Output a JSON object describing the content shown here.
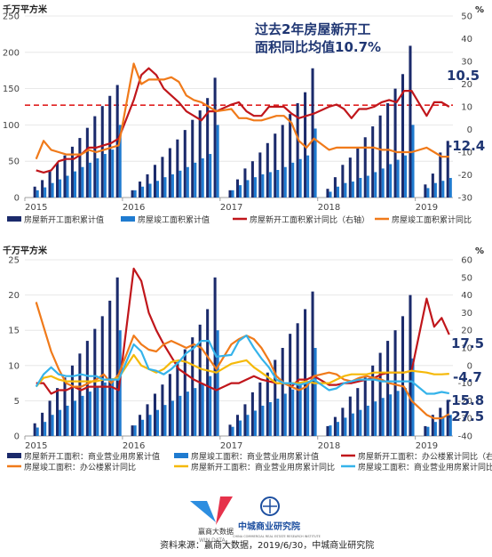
{
  "colors": {
    "navy": "#1b2a6b",
    "blue": "#1f7bd0",
    "red": "#c0161b",
    "orange": "#f07a1a",
    "yellow": "#f5b90a",
    "cyan": "#35b3ea",
    "dash": "#e02020",
    "annot": "#1f3673"
  },
  "chart1": {
    "unit_left": "千万平方米",
    "unit_right": "%",
    "annotation_line1": "过去2年房屋新开工",
    "annotation_line2": "面积同比均值10.7%",
    "end_labels": [
      "10.5",
      "-12.4"
    ],
    "legend": [
      "房屋新开工面积累计值",
      "房屋竣工面积累计值",
      "房屋新开工面积累计同比（右轴）",
      "房屋竣工面积累计同比"
    ],
    "years": [
      "2015",
      "2016",
      "2017",
      "2018",
      "2019"
    ]
  },
  "chart2": {
    "unit_left": "千万平方米",
    "unit_right": "%",
    "end_labels": [
      "17.5",
      "-4.7",
      "-15.8",
      "-27.5"
    ],
    "legend": [
      "房屋新开工面积：商业营业用房累计值",
      "房屋竣工面积：商业营业用房累计值",
      "房屋新开工面积：办公楼累计同比（右轴）",
      "房屋竣工面积：办公楼累计同比",
      "房屋新开工面积：商业营业用房累计同比",
      "房屋竣工面积：商业营业用房累计同比"
    ],
    "years": [
      "2015",
      "2016",
      "2017",
      "2018",
      "2019"
    ]
  },
  "footer": {
    "logo1_cn": "赢商大数据",
    "logo1_en": "WIN DATA",
    "logo2_cn": "中城商业研究院",
    "logo2_en": "CHINA COMMERCIAL REAL ESTATE RESEARCH INSTITUTE",
    "source": "资料来源：赢商大数据，2019/6/30，中城商业研究院"
  },
  "chart_data": [
    {
      "type": "bar",
      "x_axis": {
        "ticks": [
          "2015",
          "2016",
          "2017",
          "2018",
          "2019"
        ]
      },
      "y_left": {
        "range": [
          0,
          250
        ],
        "ticks": [
          0,
          50,
          100,
          150,
          200,
          250
        ]
      },
      "y_right": {
        "range": [
          -30,
          50
        ],
        "ticks": [
          -30,
          -20,
          -10,
          0,
          10,
          20,
          30,
          40,
          50
        ]
      },
      "reference_line": {
        "axis": "right",
        "value": 10.7
      },
      "series": [
        {
          "name": "房屋新开工面积累计值",
          "axis": "left",
          "kind": "bar",
          "values": [
            null,
            15,
            24,
            36,
            48,
            58,
            70,
            82,
            96,
            112,
            126,
            140,
            155,
            null,
            10,
            22,
            32,
            45,
            56,
            68,
            80,
            93,
            107,
            120,
            137,
            165,
            null,
            10,
            25,
            40,
            50,
            62,
            75,
            88,
            100,
            115,
            130,
            145,
            178,
            null,
            12,
            28,
            45,
            55,
            68,
            83,
            98,
            113,
            130,
            150,
            170,
            209,
            null,
            18,
            33,
            62,
            78
          ]
        },
        {
          "name": "房屋竣工面积累计值",
          "axis": "left",
          "kind": "bar",
          "values": [
            null,
            10,
            14,
            20,
            25,
            30,
            36,
            42,
            48,
            54,
            60,
            66,
            100,
            null,
            10,
            15,
            19,
            23,
            28,
            32,
            37,
            42,
            48,
            54,
            60,
            100,
            null,
            10,
            17,
            24,
            28,
            32,
            35,
            38,
            42,
            48,
            53,
            58,
            95,
            null,
            8,
            15,
            20,
            22,
            27,
            30,
            35,
            40,
            46,
            52,
            58,
            100,
            null,
            13,
            20,
            23,
            27
          ]
        },
        {
          "name": "房屋新开工面积累计同比（右轴）",
          "axis": "right",
          "kind": "line",
          "values": [
            null,
            -18,
            -19,
            -18,
            -14,
            -13,
            -13,
            -11,
            -8,
            -8,
            -7,
            -6,
            -4,
            null,
            13,
            24,
            27,
            24,
            18,
            15,
            12,
            8,
            6,
            4,
            8,
            8,
            null,
            11,
            12,
            8,
            6,
            6,
            10,
            10,
            10,
            7,
            5,
            6,
            7,
            null,
            10,
            11,
            9,
            5,
            9,
            9,
            10,
            12,
            13,
            12,
            17,
            17,
            null,
            6,
            12,
            12,
            10
          ]
        },
        {
          "name": "房屋竣工面积累计同比",
          "axis": "right",
          "kind": "line",
          "values": [
            null,
            -13,
            -5,
            -9,
            -10,
            -11,
            -11,
            -11,
            -9,
            -10,
            -9,
            -8,
            -7,
            null,
            29,
            20,
            22,
            22,
            22,
            23,
            21,
            15,
            13,
            12,
            10,
            8,
            null,
            9,
            5,
            5,
            4,
            4,
            5,
            6,
            6,
            3,
            -5,
            -8,
            -4,
            null,
            -9,
            -8,
            -8,
            -8,
            -8,
            -8,
            -8,
            -9,
            -9,
            -10,
            -10,
            -10,
            null,
            -8,
            -10,
            -12,
            -12
          ]
        }
      ]
    },
    {
      "type": "bar",
      "x_axis": {
        "ticks": [
          "2015",
          "2016",
          "2017",
          "2018",
          "2019"
        ]
      },
      "y_left": {
        "range": [
          0,
          25
        ],
        "ticks": [
          0,
          5,
          10,
          15,
          20,
          25
        ]
      },
      "y_right": {
        "range": [
          -40,
          60
        ],
        "ticks": [
          -40,
          -30,
          -20,
          -10,
          0,
          10,
          20,
          30,
          40,
          50,
          60
        ]
      },
      "series": [
        {
          "name": "房屋新开工面积：商业营业用房累计值",
          "axis": "left",
          "kind": "bar",
          "values": [
            null,
            1.8,
            3.3,
            5.0,
            6.8,
            8.3,
            10.0,
            11.7,
            13.5,
            15.2,
            17.0,
            19.2,
            22.5,
            null,
            1.5,
            3.0,
            4.5,
            6.0,
            7.3,
            8.8,
            10.5,
            12.3,
            14.0,
            15.8,
            18.0,
            22.5,
            null,
            1.6,
            3.0,
            4.5,
            6.2,
            7.6,
            9.0,
            10.8,
            12.5,
            14.5,
            16.0,
            18.0,
            20.5,
            null,
            1.4,
            2.7,
            4.0,
            5.6,
            6.8,
            8.3,
            10.0,
            11.8,
            13.5,
            15.0,
            17.0,
            20.0,
            null,
            1.4,
            3.0,
            4.0,
            5.0
          ]
        },
        {
          "name": "房屋竣工面积：商业营业用房累计值",
          "axis": "left",
          "kind": "bar",
          "values": [
            null,
            1.2,
            2.0,
            3.0,
            3.7,
            4.3,
            5.0,
            5.7,
            6.3,
            7.0,
            7.6,
            8.2,
            15.0,
            null,
            1.5,
            2.3,
            3.0,
            3.7,
            4.4,
            5.0,
            5.7,
            6.3,
            6.8,
            7.5,
            8.5,
            15.0,
            null,
            1.3,
            2.2,
            3.0,
            3.6,
            4.3,
            4.8,
            5.3,
            6.0,
            6.6,
            7.2,
            7.8,
            12.5,
            null,
            1.5,
            2.0,
            2.6,
            3.2,
            3.7,
            4.3,
            4.9,
            5.4,
            5.9,
            6.4,
            6.8,
            11.0,
            null,
            1.3,
            2.0,
            2.8,
            3.0
          ]
        },
        {
          "name": "房屋新开工面积：办公楼累计同比（右轴）",
          "axis": "right",
          "kind": "line",
          "values": [
            null,
            -10,
            -10,
            -16,
            -14,
            -14,
            -12,
            -14,
            -12,
            -12,
            -12,
            -12,
            -14,
            null,
            55,
            48,
            30,
            20,
            12,
            5,
            -2,
            -5,
            -8,
            -10,
            -12,
            -14,
            null,
            -10,
            -10,
            -8,
            -6,
            -8,
            -9,
            -10,
            -10,
            -12,
            -8,
            -8,
            -6,
            null,
            -11,
            -11,
            -10,
            -10,
            -9,
            -8,
            -7,
            -5,
            -4,
            -4,
            -4,
            -3,
            null,
            38,
            22,
            27,
            17.5
          ]
        },
        {
          "name": "房屋竣工面积：办公楼累计同比",
          "axis": "right",
          "kind": "line",
          "values": [
            null,
            36,
            22,
            8,
            -2,
            -10,
            -12,
            -12,
            -10,
            -8,
            -5,
            -10,
            -5,
            null,
            17,
            12,
            9,
            8,
            12,
            14,
            12,
            10,
            12,
            10,
            4,
            -2,
            null,
            12,
            15,
            17,
            15,
            10,
            3,
            -6,
            -10,
            -12,
            -14,
            -12,
            -6,
            null,
            -4,
            -5,
            -8,
            -9,
            -7,
            -6,
            -7,
            -8,
            -10,
            -11,
            -12,
            -20,
            null,
            -28,
            -30,
            -30,
            -27.5
          ]
        },
        {
          "name": "房屋新开工面积：商业营业用房累计同比",
          "axis": "right",
          "kind": "line",
          "values": [
            null,
            -12,
            -7,
            -6,
            -8,
            -9,
            -9,
            -9,
            -9,
            -9,
            -8,
            -8,
            -7,
            null,
            6,
            0,
            -2,
            -4,
            -2,
            2,
            3,
            2,
            0,
            -2,
            -3,
            -4,
            null,
            1,
            2,
            3,
            -1,
            -4,
            -7,
            -10,
            -10,
            -10,
            -10,
            -9,
            -10,
            null,
            -10,
            -8,
            -6,
            -5,
            -5,
            -5,
            -4,
            -4,
            -4,
            -4,
            -4,
            -3,
            null,
            -4,
            -5,
            -5,
            -4.7
          ]
        },
        {
          "name": "房屋竣工面积：商业营业用房累计同比",
          "axis": "right",
          "kind": "line",
          "values": [
            null,
            -12,
            -5,
            -1,
            -5,
            -6,
            -6,
            -5,
            -6,
            -6,
            -8,
            -8,
            -8,
            null,
            12,
            8,
            -2,
            -3,
            -5,
            -2,
            2,
            7,
            10,
            14,
            14,
            5,
            null,
            6,
            14,
            17,
            10,
            4,
            -1,
            -8,
            -10,
            -10,
            -11,
            -10,
            -8,
            null,
            -14,
            -13,
            -10,
            -9,
            -8,
            -8,
            -8,
            -9,
            -9,
            -9,
            -9,
            -9,
            null,
            -16,
            -16,
            -15,
            -15.8
          ]
        }
      ]
    }
  ]
}
